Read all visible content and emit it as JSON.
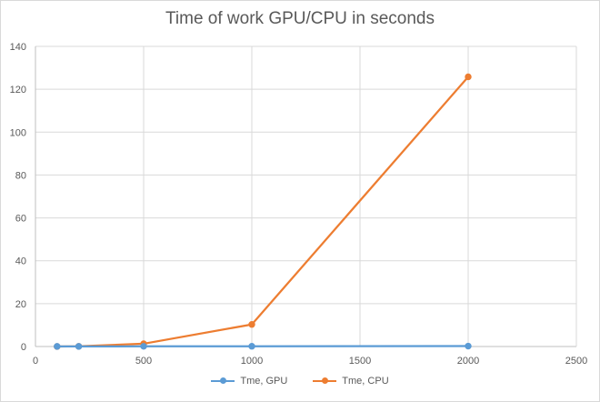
{
  "chart_data": {
    "type": "line",
    "title": "Time of work GPU/CPU in seconds",
    "xlim": [
      0,
      2500
    ],
    "ylim": [
      0,
      140
    ],
    "x_ticks": [
      "0",
      "500",
      "1000",
      "1500",
      "2000",
      "2500"
    ],
    "y_ticks": [
      "0",
      "20",
      "40",
      "60",
      "80",
      "100",
      "120",
      "140"
    ],
    "grid": true,
    "legend_position": "bottom",
    "series": [
      {
        "name": "Tme, GPU",
        "color": "#5b9bd5",
        "points": [
          [
            100,
            0.05
          ],
          [
            200,
            0.05
          ],
          [
            500,
            0.08
          ],
          [
            1000,
            0.12
          ],
          [
            2000,
            0.2
          ]
        ]
      },
      {
        "name": "Tme, CPU",
        "color": "#ed7d31",
        "points": [
          [
            100,
            0.02
          ],
          [
            200,
            0.1
          ],
          [
            500,
            1.3
          ],
          [
            1000,
            10.3
          ],
          [
            2000,
            125.8
          ]
        ]
      }
    ]
  }
}
